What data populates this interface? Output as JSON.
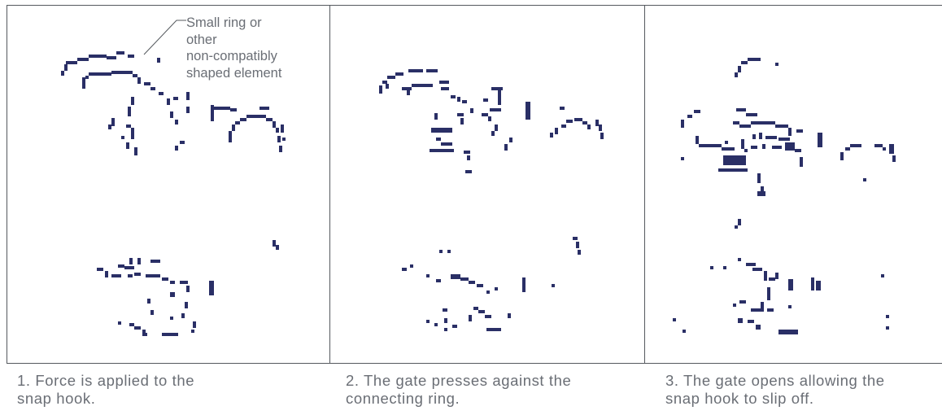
{
  "callout": {
    "lines": [
      "Small ring or",
      "other",
      "non-compatibly",
      "shaped element"
    ]
  },
  "captions": [
    {
      "text_line1": "1. Force is applied to the",
      "text_line2": "snap hook."
    },
    {
      "text_line1": "2. The gate presses against the",
      "text_line2": "connecting ring."
    },
    {
      "text_line1": "3. The gate opens allowing the",
      "text_line2": "snap hook to slip off."
    }
  ],
  "colors": {
    "ink": "#2a2f66",
    "border": "#55595e",
    "text": "#6a6e75"
  }
}
